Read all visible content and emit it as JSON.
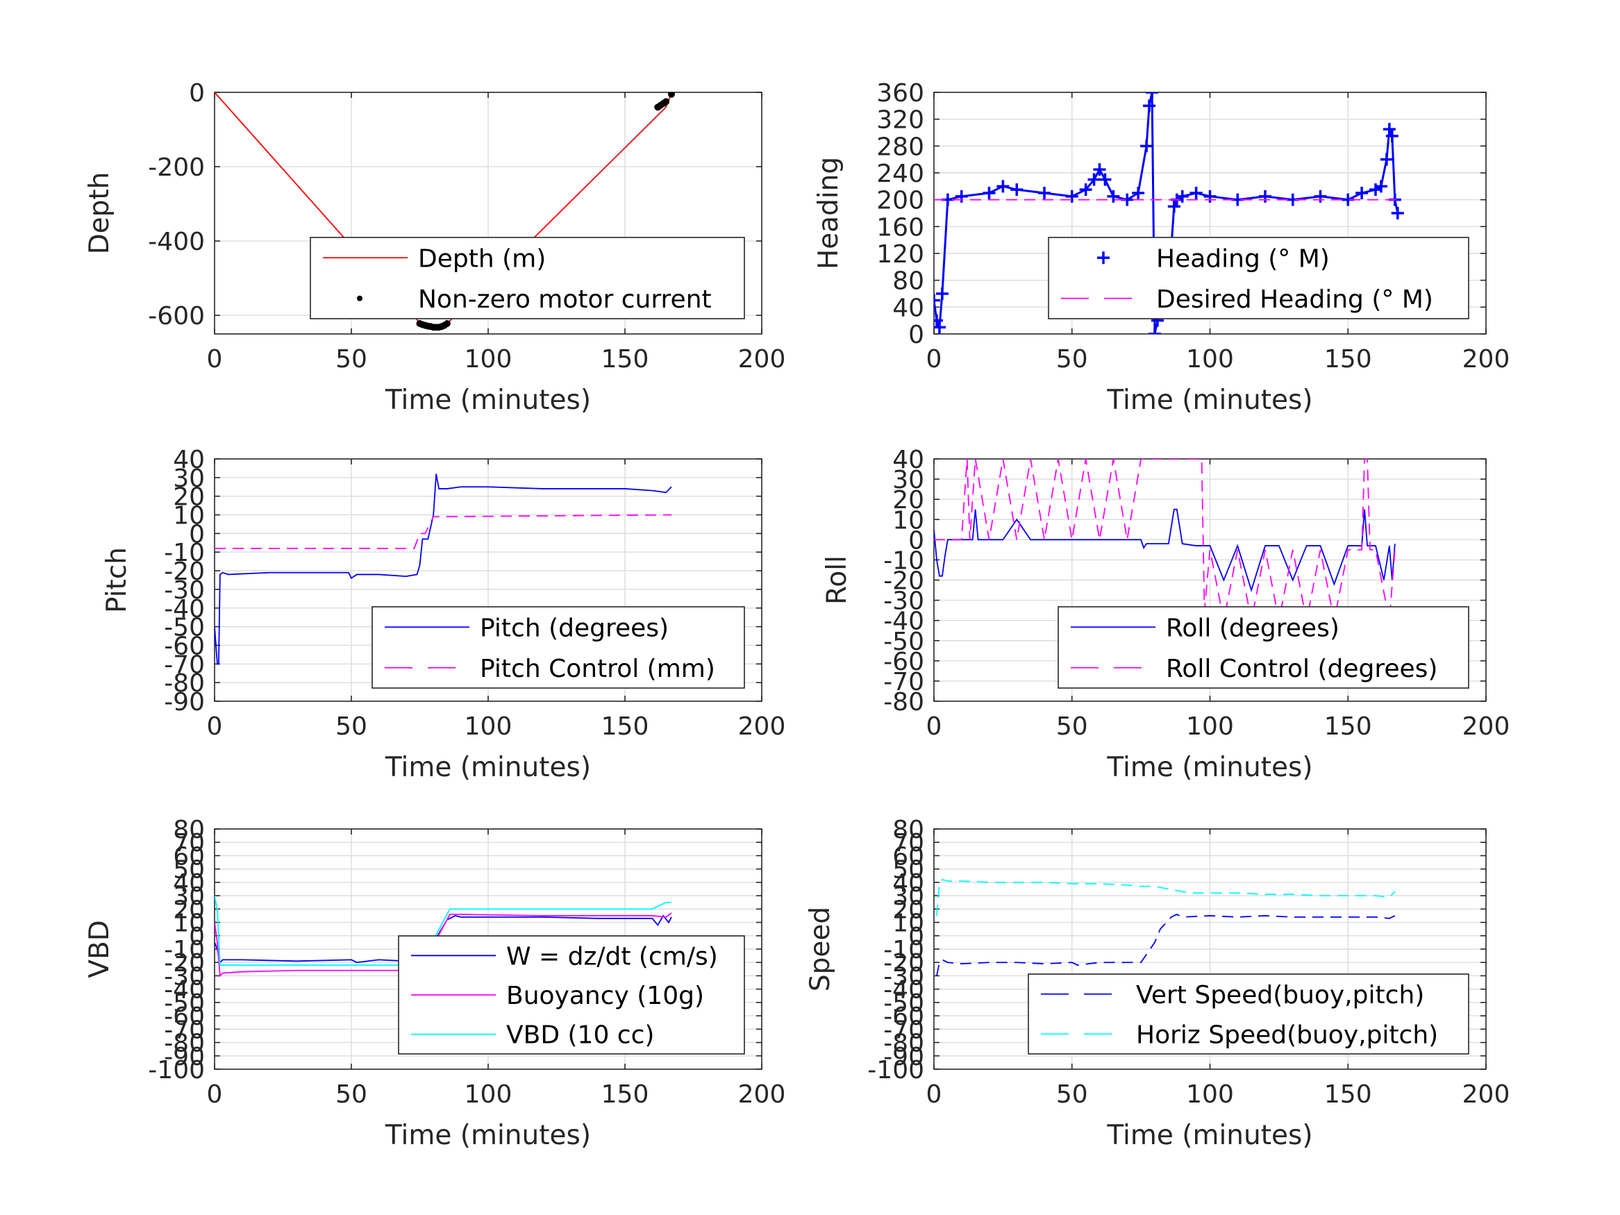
{
  "chart_data": [
    {
      "type": "line",
      "xlabel": "Time (minutes)",
      "ylabel": "Depth",
      "xlim": [
        0,
        200
      ],
      "ylim": [
        -650,
        0
      ],
      "xticks": [
        0,
        50,
        100,
        150,
        200
      ],
      "xtick_labels": [
        "0",
        "50",
        "100",
        "150",
        "200"
      ],
      "yticks": [
        0,
        -200,
        -400,
        -600
      ],
      "ytick_labels": [
        "0",
        "-200",
        "-400",
        "-600"
      ],
      "grid": true,
      "legend": "bottom-right",
      "series": [
        {
          "name": "Depth (m)",
          "color": "#ff0000",
          "style": "solid",
          "x": [
            0,
            75,
            78,
            81,
            84,
            86,
            165,
            167
          ],
          "y": [
            0,
            -620,
            -628,
            -632,
            -628,
            -615,
            -40,
            -2
          ]
        },
        {
          "name": "Non-zero motor current",
          "color": "#000000",
          "style": "dots",
          "x": [
            75,
            76,
            77,
            78,
            79,
            80,
            81,
            82,
            83,
            84,
            85,
            162,
            163,
            164,
            165,
            167
          ],
          "y": [
            -622,
            -625,
            -627,
            -629,
            -630,
            -632,
            -632,
            -632,
            -630,
            -627,
            -622,
            -40,
            -35,
            -30,
            -25,
            -5
          ]
        }
      ]
    },
    {
      "type": "line",
      "xlabel": "Time (minutes)",
      "ylabel": "Heading",
      "xlim": [
        0,
        200
      ],
      "ylim": [
        0,
        360
      ],
      "xticks": [
        0,
        50,
        100,
        150,
        200
      ],
      "xtick_labels": [
        "0",
        "50",
        "100",
        "150",
        "200"
      ],
      "yticks": [
        0,
        40,
        80,
        120,
        160,
        200,
        240,
        280,
        320,
        360
      ],
      "ytick_labels": [
        "0",
        "40",
        "80",
        "120",
        "160",
        "200",
        "240",
        "280",
        "320",
        "360"
      ],
      "grid": true,
      "legend": "bottom-right",
      "series": [
        {
          "name": "Heading (° M)",
          "color": "#0000ff",
          "style": "plus",
          "x": [
            0,
            1,
            2,
            3,
            5,
            10,
            20,
            25,
            30,
            40,
            50,
            55,
            58,
            60,
            62,
            65,
            70,
            74,
            77,
            78,
            79,
            80,
            81,
            84,
            86,
            87,
            88,
            90,
            95,
            100,
            110,
            120,
            130,
            140,
            150,
            155,
            160,
            162,
            164,
            165,
            166,
            167,
            168
          ],
          "y": [
            50,
            20,
            10,
            60,
            200,
            205,
            210,
            220,
            215,
            210,
            205,
            215,
            230,
            245,
            230,
            205,
            200,
            210,
            280,
            340,
            360,
            0,
            20,
            60,
            130,
            190,
            200,
            205,
            210,
            205,
            200,
            205,
            200,
            205,
            200,
            210,
            215,
            220,
            260,
            305,
            295,
            200,
            180
          ]
        },
        {
          "name": "Desired Heading (° M)",
          "color": "#ff00ff",
          "style": "dashed",
          "x": [
            0,
            168
          ],
          "y": [
            200,
            200
          ]
        }
      ]
    },
    {
      "type": "line",
      "xlabel": "Time (minutes)",
      "ylabel": "Pitch",
      "xlim": [
        0,
        200
      ],
      "ylim": [
        -90,
        40
      ],
      "xticks": [
        0,
        50,
        100,
        150,
        200
      ],
      "xtick_labels": [
        "0",
        "50",
        "100",
        "150",
        "200"
      ],
      "yticks": [
        40,
        30,
        20,
        10,
        0,
        -10,
        -20,
        -30,
        -40,
        -50,
        -60,
        -70,
        -80,
        -90
      ],
      "ytick_labels": [
        "40",
        "30",
        "20",
        "10",
        "0",
        "-10",
        "-20",
        "-30",
        "-40",
        "-50",
        "-60",
        "-70",
        "-80",
        "-90"
      ],
      "grid": true,
      "legend": "bottom-right",
      "series": [
        {
          "name": "Pitch (degrees)",
          "color": "#0000ff",
          "style": "solid",
          "x": [
            0,
            1,
            1.5,
            2,
            3,
            5,
            20,
            49,
            50,
            52,
            60,
            70,
            74,
            75,
            76,
            78,
            80,
            81,
            82,
            85,
            90,
            100,
            120,
            140,
            150,
            160,
            165,
            167
          ],
          "y": [
            -50,
            -70,
            -70,
            -22,
            -21,
            -22,
            -21,
            -21,
            -24,
            -22,
            -22,
            -23,
            -22,
            -17,
            -3,
            -3,
            10,
            32,
            24,
            24,
            25,
            25,
            24,
            24,
            24,
            23,
            22,
            25
          ]
        },
        {
          "name": "Pitch Control (mm)",
          "color": "#ff00ff",
          "style": "dashed",
          "x": [
            0,
            73,
            75,
            77,
            80,
            82,
            167
          ],
          "y": [
            -8,
            -8,
            0,
            0,
            9,
            9,
            10
          ]
        }
      ]
    },
    {
      "type": "line",
      "xlabel": "Time (minutes)",
      "ylabel": "Roll",
      "xlim": [
        0,
        200
      ],
      "ylim": [
        -80,
        40
      ],
      "xticks": [
        0,
        50,
        100,
        150,
        200
      ],
      "xtick_labels": [
        "0",
        "50",
        "100",
        "150",
        "200"
      ],
      "yticks": [
        40,
        30,
        20,
        10,
        0,
        -10,
        -20,
        -30,
        -40,
        -50,
        -60,
        -70,
        -80
      ],
      "ytick_labels": [
        "40",
        "30",
        "20",
        "10",
        "0",
        "-10",
        "-20",
        "-30",
        "-40",
        "-50",
        "-60",
        "-70",
        "-80"
      ],
      "grid": true,
      "legend": "bottom-right",
      "series": [
        {
          "name": "Roll (degrees)",
          "color": "#0000ff",
          "style": "solid",
          "x": [
            0,
            1,
            2,
            3,
            4,
            5,
            10,
            14,
            15,
            16,
            20,
            25,
            30,
            35,
            40,
            50,
            60,
            70,
            75,
            76,
            77,
            80,
            85,
            87,
            88,
            90,
            95,
            98,
            100,
            105,
            110,
            115,
            120,
            125,
            130,
            135,
            140,
            145,
            150,
            155,
            156,
            157,
            158,
            160,
            163,
            165,
            166,
            167
          ],
          "y": [
            5,
            -10,
            -18,
            -18,
            -8,
            0,
            0,
            0,
            15,
            0,
            0,
            0,
            10,
            0,
            0,
            0,
            0,
            0,
            0,
            -4,
            -2,
            -2,
            -2,
            15,
            15,
            -2,
            -3,
            -3,
            -3,
            -20,
            -3,
            -25,
            -3,
            -3,
            -20,
            -3,
            -3,
            -22,
            -3,
            -3,
            15,
            -3,
            -3,
            -3,
            -20,
            -3,
            -20,
            -2
          ]
        },
        {
          "name": "Roll Control (degrees)",
          "color": "#ff00ff",
          "style": "dashed",
          "x": [
            0,
            10,
            12,
            13,
            15,
            20,
            25,
            30,
            35,
            40,
            45,
            50,
            55,
            60,
            65,
            70,
            75,
            80,
            90,
            97,
            98,
            100,
            105,
            110,
            115,
            120,
            125,
            130,
            135,
            140,
            145,
            150,
            155,
            156,
            157,
            158,
            160,
            165,
            167
          ],
          "y": [
            0,
            0,
            40,
            0,
            40,
            0,
            40,
            0,
            40,
            0,
            40,
            0,
            40,
            0,
            40,
            0,
            40,
            40,
            40,
            40,
            -35,
            -5,
            -40,
            -5,
            -40,
            -5,
            -40,
            -5,
            -40,
            -5,
            -40,
            -5,
            -5,
            40,
            40,
            -5,
            -5,
            -40,
            -5
          ]
        }
      ]
    },
    {
      "type": "line",
      "xlabel": "Time (minutes)",
      "ylabel": "VBD",
      "xlim": [
        0,
        200
      ],
      "ylim": [
        -100,
        80
      ],
      "xticks": [
        0,
        50,
        100,
        150,
        200
      ],
      "xtick_labels": [
        "0",
        "50",
        "100",
        "150",
        "200"
      ],
      "yticks": [
        80,
        70,
        60,
        50,
        40,
        30,
        20,
        10,
        0,
        -10,
        -20,
        -30,
        -40,
        -50,
        -60,
        -70,
        -80,
        -90,
        -100
      ],
      "ytick_labels": [
        "80",
        "70",
        "60",
        "50",
        "40",
        "30",
        "20",
        "10",
        "0",
        "-10",
        "-20",
        "-30",
        "-40",
        "-50",
        "-60",
        "-70",
        "-80",
        "-90",
        "-100"
      ],
      "grid": true,
      "legend": "bottom-right",
      "series": [
        {
          "name": "W = dz/dt (cm/s)",
          "color": "#0000ff",
          "style": "solid",
          "x": [
            0,
            1,
            2,
            3,
            10,
            30,
            50,
            52,
            60,
            70,
            75,
            76,
            80,
            85,
            88,
            90,
            100,
            120,
            140,
            160,
            162,
            164,
            166,
            167
          ],
          "y": [
            -5,
            -10,
            -20,
            -18,
            -18,
            -19,
            -18,
            -20,
            -18,
            -19,
            -18,
            -10,
            -5,
            12,
            15,
            14,
            14,
            14,
            13,
            13,
            8,
            15,
            10,
            14
          ]
        },
        {
          "name": "Buoyancy (10g)",
          "color": "#ff00ff",
          "style": "solid",
          "x": [
            0,
            1,
            2,
            3,
            10,
            30,
            50,
            70,
            75,
            86,
            90,
            120,
            150,
            160,
            165,
            167
          ],
          "y": [
            10,
            -5,
            -30,
            -28,
            -27,
            -26,
            -26,
            -26,
            -26,
            16,
            16,
            15,
            15,
            15,
            14,
            17
          ]
        },
        {
          "name": "VBD (10 cc)",
          "color": "#00ffff",
          "style": "solid",
          "x": [
            0,
            1,
            2,
            3,
            10,
            50,
            70,
            75,
            86,
            90,
            120,
            160,
            162,
            165,
            167
          ],
          "y": [
            30,
            20,
            -22,
            -22,
            -22,
            -22,
            -22,
            -22,
            20,
            20,
            20,
            20,
            22,
            25,
            25
          ]
        }
      ]
    },
    {
      "type": "line",
      "xlabel": "Time (minutes)",
      "ylabel": "Speed",
      "xlim": [
        0,
        200
      ],
      "ylim": [
        -100,
        80
      ],
      "xticks": [
        0,
        50,
        100,
        150,
        200
      ],
      "xtick_labels": [
        "0",
        "50",
        "100",
        "150",
        "200"
      ],
      "yticks": [
        80,
        70,
        60,
        50,
        40,
        30,
        20,
        10,
        0,
        -10,
        -20,
        -30,
        -40,
        -50,
        -60,
        -70,
        -80,
        -90,
        -100
      ],
      "ytick_labels": [
        "80",
        "70",
        "60",
        "50",
        "40",
        "30",
        "20",
        "10",
        "0",
        "-10",
        "-20",
        "-30",
        "-40",
        "-50",
        "-60",
        "-70",
        "-80",
        "-90",
        "-100"
      ],
      "grid": true,
      "legend": "bottom-right",
      "series": [
        {
          "name": "Vert Speed(buoy,pitch)",
          "color": "#0000ff",
          "style": "dashed",
          "x": [
            1,
            2,
            3,
            5,
            10,
            20,
            30,
            40,
            50,
            52,
            60,
            70,
            75,
            80,
            82,
            86,
            88,
            90,
            100,
            110,
            120,
            130,
            140,
            150,
            160,
            165,
            167
          ],
          "y": [
            -30,
            -20,
            -18,
            -20,
            -21,
            -20,
            -20,
            -21,
            -20,
            -22,
            -20,
            -20,
            -20,
            -5,
            5,
            14,
            16,
            14,
            15,
            14,
            15,
            14,
            14,
            14,
            14,
            13,
            15
          ]
        },
        {
          "name": "Horiz Speed(buoy,pitch)",
          "color": "#00ffff",
          "style": "dashed",
          "x": [
            1,
            2,
            3,
            5,
            10,
            20,
            30,
            40,
            50,
            60,
            70,
            75,
            80,
            85,
            90,
            95,
            100,
            110,
            120,
            130,
            140,
            150,
            160,
            165,
            167
          ],
          "y": [
            15,
            40,
            42,
            41,
            41,
            40,
            40,
            40,
            39,
            39,
            38,
            37,
            37,
            35,
            33,
            32,
            32,
            32,
            31,
            31,
            30,
            30,
            30,
            29,
            33
          ]
        }
      ]
    }
  ]
}
